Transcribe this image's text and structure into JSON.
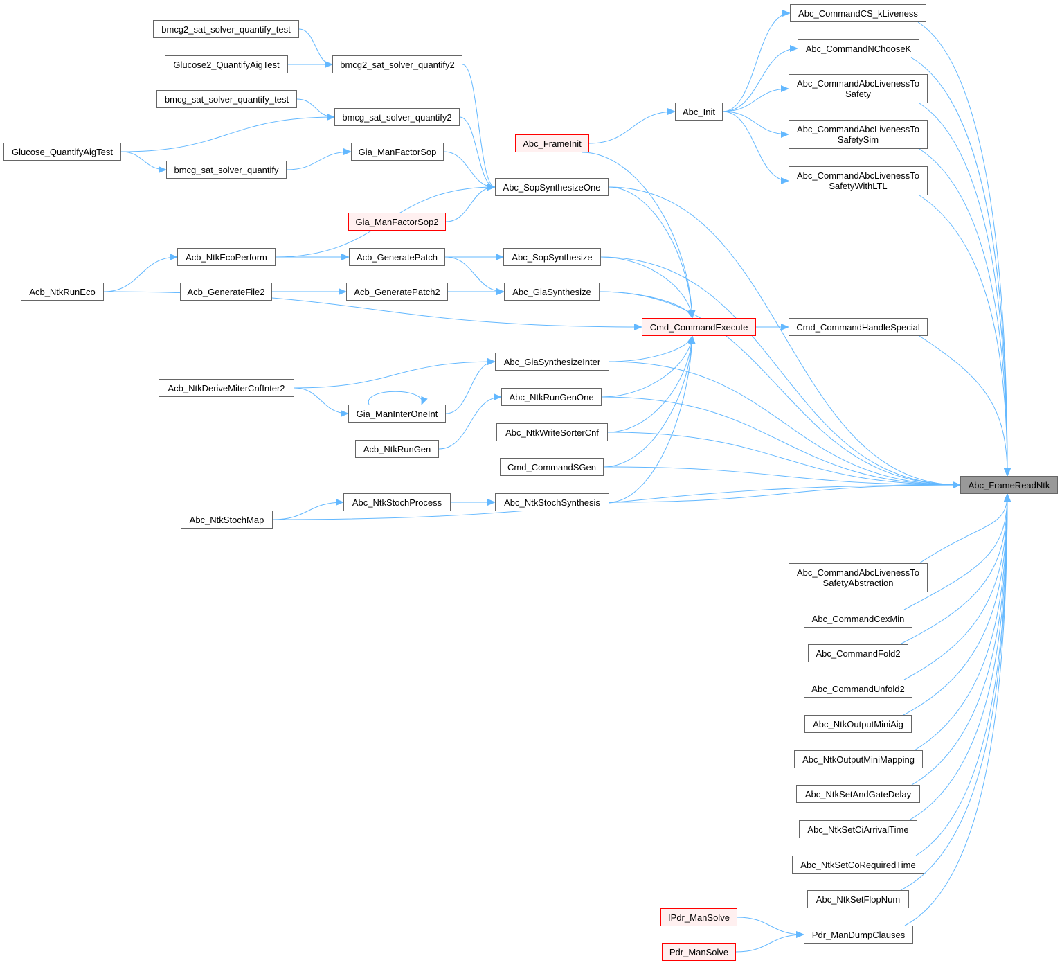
{
  "colors": {
    "edge": "#63b8ff",
    "node_border": "#666666",
    "highlight_border": "#ff0000",
    "highlight_fill": "#fff0f0",
    "focus_fill": "#999999"
  },
  "nodes": {
    "cskl": {
      "label": "Abc_CommandCS_kLiveness"
    },
    "nck": {
      "label": "Abc_CommandNChooseK"
    },
    "lts": {
      "label": "Abc_CommandAbcLivenessTo\nSafety"
    },
    "ltss": {
      "label": "Abc_CommandAbcLivenessTo\nSafetySim"
    },
    "ltsl": {
      "label": "Abc_CommandAbcLivenessTo\nSafetyWithLTL"
    },
    "init": {
      "label": "Abc_Init"
    },
    "finit": {
      "label": "Abc_FrameInit",
      "style": "red"
    },
    "b2t": {
      "label": "bmcg2_sat_solver_quantify_test"
    },
    "g2q": {
      "label": "Glucose2_QuantifyAigTest"
    },
    "b2q2": {
      "label": "bmcg2_sat_solver_quantify2"
    },
    "bt": {
      "label": "bmcg_sat_solver_quantify_test"
    },
    "bq2": {
      "label": "bmcg_sat_solver_quantify2"
    },
    "gq": {
      "label": "Glucose_QuantifyAigTest"
    },
    "bq": {
      "label": "bmcg_sat_solver_quantify"
    },
    "gfs": {
      "label": "Gia_ManFactorSop"
    },
    "sso": {
      "label": "Abc_SopSynthesizeOne"
    },
    "gfs2": {
      "label": "Gia_ManFactorSop2",
      "style": "red"
    },
    "eco": {
      "label": "Acb_NtkEcoPerform"
    },
    "gp": {
      "label": "Acb_GeneratePatch"
    },
    "ss": {
      "label": "Abc_SopSynthesize"
    },
    "reco": {
      "label": "Acb_NtkRunEco"
    },
    "gf2": {
      "label": "Acb_GenerateFile2"
    },
    "gp2": {
      "label": "Acb_GeneratePatch2"
    },
    "gs": {
      "label": "Abc_GiaSynthesize"
    },
    "cce": {
      "label": "Cmd_CommandExecute",
      "style": "red"
    },
    "chs": {
      "label": "Cmd_CommandHandleSpecial"
    },
    "gsi": {
      "label": "Abc_GiaSynthesizeInter"
    },
    "dmc": {
      "label": "Acb_NtkDeriveMiterCnfInter2"
    },
    "gmi": {
      "label": "Gia_ManInterOneInt"
    },
    "rgo": {
      "label": "Abc_NtkRunGenOne"
    },
    "rg": {
      "label": "Acb_NtkRunGen"
    },
    "wsc": {
      "label": "Abc_NtkWriteSorterCnf"
    },
    "sgen": {
      "label": "Cmd_CommandSGen"
    },
    "sp": {
      "label": "Abc_NtkStochProcess"
    },
    "ssyn": {
      "label": "Abc_NtkStochSynthesis"
    },
    "smap": {
      "label": "Abc_NtkStochMap"
    },
    "frn": {
      "label": "Abc_FrameReadNtk",
      "style": "focus"
    },
    "ltsa": {
      "label": "Abc_CommandAbcLivenessTo\nSafetyAbstraction"
    },
    "cex": {
      "label": "Abc_CommandCexMin"
    },
    "f2": {
      "label": "Abc_CommandFold2"
    },
    "u2": {
      "label": "Abc_CommandUnfold2"
    },
    "oma": {
      "label": "Abc_NtkOutputMiniAig"
    },
    "omm": {
      "label": "Abc_NtkOutputMiniMapping"
    },
    "sagd": {
      "label": "Abc_NtkSetAndGateDelay"
    },
    "scat": {
      "label": "Abc_NtkSetCiArrivalTime"
    },
    "scrt": {
      "label": "Abc_NtkSetCoRequiredTime"
    },
    "sfn": {
      "label": "Abc_NtkSetFlopNum"
    },
    "pdc": {
      "label": "Pdr_ManDumpClauses"
    },
    "ipdr": {
      "label": "IPdr_ManSolve",
      "style": "red"
    },
    "pdr": {
      "label": "Pdr_ManSolve",
      "style": "red"
    }
  },
  "edges": [
    [
      "b2t",
      "b2q2"
    ],
    [
      "g2q",
      "b2q2"
    ],
    [
      "bt",
      "bq2"
    ],
    [
      "gq",
      "bq2"
    ],
    [
      "gq",
      "bq"
    ],
    [
      "bq",
      "gfs"
    ],
    [
      "b2q2",
      "sso"
    ],
    [
      "bq2",
      "sso"
    ],
    [
      "gfs",
      "sso"
    ],
    [
      "eco",
      "sso"
    ],
    [
      "gfs2",
      "sso"
    ],
    [
      "reco",
      "eco"
    ],
    [
      "eco",
      "gp"
    ],
    [
      "gp",
      "ss"
    ],
    [
      "gp",
      "gs"
    ],
    [
      "gf2",
      "gp2"
    ],
    [
      "gp2",
      "gs"
    ],
    [
      "reco",
      "cce"
    ],
    [
      "sso",
      "cce"
    ],
    [
      "ss",
      "cce"
    ],
    [
      "gs",
      "cce"
    ],
    [
      "gsi",
      "cce"
    ],
    [
      "rgo",
      "cce"
    ],
    [
      "wsc",
      "cce"
    ],
    [
      "sgen",
      "cce"
    ],
    [
      "ssyn",
      "cce"
    ],
    [
      "finit",
      "cce"
    ],
    [
      "finit",
      "init"
    ],
    [
      "init",
      "cskl"
    ],
    [
      "init",
      "nck"
    ],
    [
      "init",
      "lts"
    ],
    [
      "init",
      "ltss"
    ],
    [
      "init",
      "ltsl"
    ],
    [
      "cce",
      "chs"
    ],
    [
      "dmc",
      "gsi"
    ],
    [
      "dmc",
      "gmi"
    ],
    [
      "gmi",
      "gsi"
    ],
    [
      "gmi",
      "gmi"
    ],
    [
      "rg",
      "rgo"
    ],
    [
      "sp",
      "ssyn"
    ],
    [
      "smap",
      "sp"
    ],
    [
      "ipdr",
      "pdc"
    ],
    [
      "pdr",
      "pdc"
    ],
    [
      "cskl",
      "frn"
    ],
    [
      "nck",
      "frn"
    ],
    [
      "lts",
      "frn"
    ],
    [
      "ltss",
      "frn"
    ],
    [
      "ltsl",
      "frn"
    ],
    [
      "sso",
      "frn"
    ],
    [
      "ss",
      "frn"
    ],
    [
      "gs",
      "frn"
    ],
    [
      "chs",
      "frn"
    ],
    [
      "gsi",
      "frn"
    ],
    [
      "rgo",
      "frn"
    ],
    [
      "wsc",
      "frn"
    ],
    [
      "sgen",
      "frn"
    ],
    [
      "ssyn",
      "frn"
    ],
    [
      "smap",
      "frn"
    ],
    [
      "ltsa",
      "frn"
    ],
    [
      "cex",
      "frn"
    ],
    [
      "f2",
      "frn"
    ],
    [
      "u2",
      "frn"
    ],
    [
      "oma",
      "frn"
    ],
    [
      "omm",
      "frn"
    ],
    [
      "sagd",
      "frn"
    ],
    [
      "scat",
      "frn"
    ],
    [
      "scrt",
      "frn"
    ],
    [
      "sfn",
      "frn"
    ],
    [
      "pdc",
      "frn"
    ]
  ]
}
